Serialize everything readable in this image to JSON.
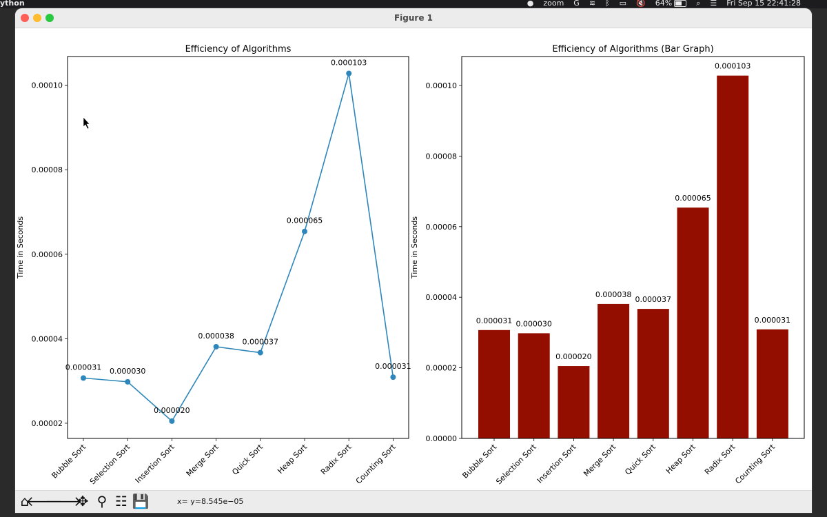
{
  "menubar": {
    "app_name": "ython",
    "zoom": "zoom",
    "battery": "64%",
    "battery_level": 0.64,
    "datetime": "Fri Sep 15  22:41:28"
  },
  "window": {
    "title": "Figure 1"
  },
  "toolbar": {
    "buttons": [
      "home-icon",
      "back-arrow-icon",
      "forward-arrow-icon",
      "pan-icon",
      "zoom-magnifier-icon",
      "configure-subplots-icon",
      "save-icon"
    ],
    "coords": "x= y=8.545e−05"
  },
  "colors": {
    "line": "#2e86ba",
    "bar": "#940e00"
  },
  "chart_data": [
    {
      "type": "line",
      "title": "Efficiency of Algorithms",
      "xlabel": "",
      "ylabel": "Time in Seconds",
      "categories": [
        "Bubble Sort",
        "Selection Sort",
        "Insertion Sort",
        "Merge Sort",
        "Quick Sort",
        "Heap Sort",
        "Radix Sort",
        "Counting Sort"
      ],
      "values": [
        3.07e-05,
        2.98e-05,
        2.05e-05,
        3.81e-05,
        3.67e-05,
        6.54e-05,
        0.0001028,
        3.09e-05
      ],
      "data_labels": [
        "0.000031",
        "0.000030",
        "0.000020",
        "0.000038",
        "0.000037",
        "0.000065",
        "0.000103",
        "0.000031"
      ],
      "yticks": [
        "0.00002",
        "0.00004",
        "0.00006",
        "0.00008",
        "0.00010"
      ],
      "ytick_values": [
        2e-05,
        4e-05,
        6e-05,
        8e-05,
        0.0001
      ],
      "ylim": [
        1.64e-05,
        0.0001068
      ],
      "grid": false
    },
    {
      "type": "bar",
      "title": "Efficiency of Algorithms (Bar Graph)",
      "xlabel": "",
      "ylabel": "Time in Seconds",
      "categories": [
        "Bubble Sort",
        "Selection Sort",
        "Insertion Sort",
        "Merge Sort",
        "Quick Sort",
        "Heap Sort",
        "Radix Sort",
        "Counting Sort"
      ],
      "values": [
        3.07e-05,
        2.98e-05,
        2.05e-05,
        3.81e-05,
        3.67e-05,
        6.54e-05,
        0.0001028,
        3.09e-05
      ],
      "data_labels": [
        "0.000031",
        "0.000030",
        "0.000020",
        "0.000038",
        "0.000037",
        "0.000065",
        "0.000103",
        "0.000031"
      ],
      "yticks": [
        "0.00000",
        "0.00002",
        "0.00004",
        "0.00006",
        "0.00008",
        "0.00010"
      ],
      "ytick_values": [
        0,
        2e-05,
        4e-05,
        6e-05,
        8e-05,
        0.0001
      ],
      "ylim": [
        0,
        0.0001082
      ],
      "grid": false
    }
  ]
}
